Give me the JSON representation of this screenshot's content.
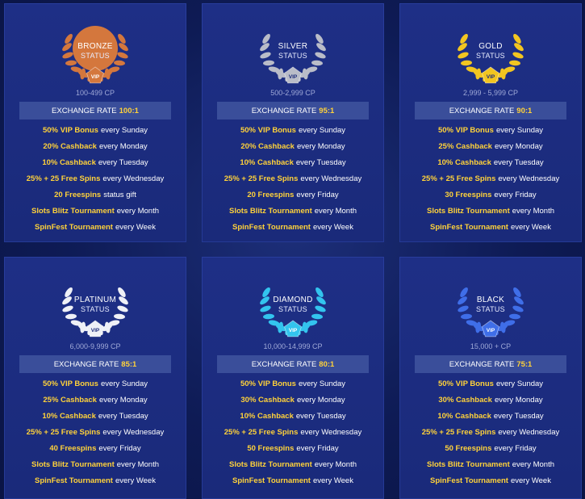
{
  "colors": {
    "accent": "#ffd23a",
    "card": "#1e2f86",
    "rate_bar": "#3a4e9a"
  },
  "tiers": [
    {
      "name": "BRONZE",
      "status": "STATUS",
      "vip": "VIP",
      "range": "100-499 CP",
      "color": "#d4773d",
      "rate_label": "EXCHANGE RATE",
      "rate_value": "100:1",
      "perks": [
        {
          "hl": "50% VIP Bonus",
          "rest": "every Sunday"
        },
        {
          "hl": "20% Cashback",
          "rest": "every Monday"
        },
        {
          "hl": "10% Cashback",
          "rest": "every Tuesday"
        },
        {
          "hl": "25% + 25 Free Spins",
          "rest": "every Wednesday"
        },
        {
          "hl": "20 Freespins",
          "rest": "status gift"
        },
        {
          "hl": "Slots Blitz Tournament",
          "rest": "every Month"
        },
        {
          "hl": "SpinFest Tournament",
          "rest": "every Week"
        }
      ]
    },
    {
      "name": "SILVER",
      "status": "STATUS",
      "vip": "VIP",
      "range": "500-2,999 CP",
      "color": "#b9bcc8",
      "rate_label": "EXCHANGE RATE",
      "rate_value": "95:1",
      "perks": [
        {
          "hl": "50% VIP Bonus",
          "rest": "every Sunday"
        },
        {
          "hl": "20% Cashback",
          "rest": "every Monday"
        },
        {
          "hl": "10% Cashback",
          "rest": "every Tuesday"
        },
        {
          "hl": "25% + 25 Free Spins",
          "rest": "every Wednesday"
        },
        {
          "hl": "20 Freespins",
          "rest": "every Friday"
        },
        {
          "hl": "Slots Blitz Tournament",
          "rest": "every Month"
        },
        {
          "hl": "SpinFest Tournament",
          "rest": "every Week"
        }
      ]
    },
    {
      "name": "GOLD",
      "status": "STATUS",
      "vip": "VIP",
      "range": "2,999 - 5,999 CP",
      "color": "#f2c520",
      "rate_label": "EXCHANGE RATE",
      "rate_value": "90:1",
      "perks": [
        {
          "hl": "50% VIP Bonus",
          "rest": "every Sunday"
        },
        {
          "hl": "25% Cashback",
          "rest": "every Monday"
        },
        {
          "hl": "10% Cashback",
          "rest": "every Tuesday"
        },
        {
          "hl": "25% + 25 Free Spins",
          "rest": "every Wednesday"
        },
        {
          "hl": "30 Freespins",
          "rest": "every Friday"
        },
        {
          "hl": "Slots Blitz Tournament",
          "rest": "every Month"
        },
        {
          "hl": "SpinFest Tournament",
          "rest": "every Week"
        }
      ]
    },
    {
      "name": "PLATINUM",
      "status": "STATUS",
      "vip": "VIP",
      "range": "6,000-9,999 CP",
      "color": "#eef0f6",
      "rate_label": "EXCHANGE RATE",
      "rate_value": "85:1",
      "perks": [
        {
          "hl": "50% VIP Bonus",
          "rest": "every Sunday"
        },
        {
          "hl": "25% Cashback",
          "rest": "every Monday"
        },
        {
          "hl": "10% Cashback",
          "rest": "every Tuesday"
        },
        {
          "hl": "25% + 25 Free Spins",
          "rest": "every Wednesday"
        },
        {
          "hl": "40 Freespins",
          "rest": "every Friday"
        },
        {
          "hl": "Slots Blitz Tournament",
          "rest": "every Month"
        },
        {
          "hl": "SpinFest Tournament",
          "rest": "every Week"
        }
      ]
    },
    {
      "name": "DIAMOND",
      "status": "STATUS",
      "vip": "VIP",
      "range": "10,000-14,999 CP",
      "color": "#33c4ee",
      "rate_label": "EXCHANGE RATE",
      "rate_value": "80:1",
      "perks": [
        {
          "hl": "50% VIP Bonus",
          "rest": "every Sunday"
        },
        {
          "hl": "30% Cashback",
          "rest": "every Monday"
        },
        {
          "hl": "10% Cashback",
          "rest": "every Tuesday"
        },
        {
          "hl": "25% + 25 Free Spins",
          "rest": "every Wednesday"
        },
        {
          "hl": "50 Freespins",
          "rest": "every Friday"
        },
        {
          "hl": "Slots Blitz Tournament",
          "rest": "every Month"
        },
        {
          "hl": "SpinFest Tournament",
          "rest": "every Week"
        }
      ]
    },
    {
      "name": "BLACK",
      "status": "STATUS",
      "vip": "VIP",
      "range": "15,000 + CP",
      "color": "#3f6ee8",
      "rate_label": "EXCHANGE RATE",
      "rate_value": "75:1",
      "perks": [
        {
          "hl": "50% VIP Bonus",
          "rest": "every Sunday"
        },
        {
          "hl": "30% Cashback",
          "rest": "every Monday"
        },
        {
          "hl": "10% Cashback",
          "rest": "every Tuesday"
        },
        {
          "hl": "25% + 25 Free Spins",
          "rest": "every Wednesday"
        },
        {
          "hl": "50 Freespins",
          "rest": "every Friday"
        },
        {
          "hl": "Slots Blitz Tournament",
          "rest": "every Month"
        },
        {
          "hl": "SpinFest Tournament",
          "rest": "every Week"
        }
      ]
    }
  ]
}
